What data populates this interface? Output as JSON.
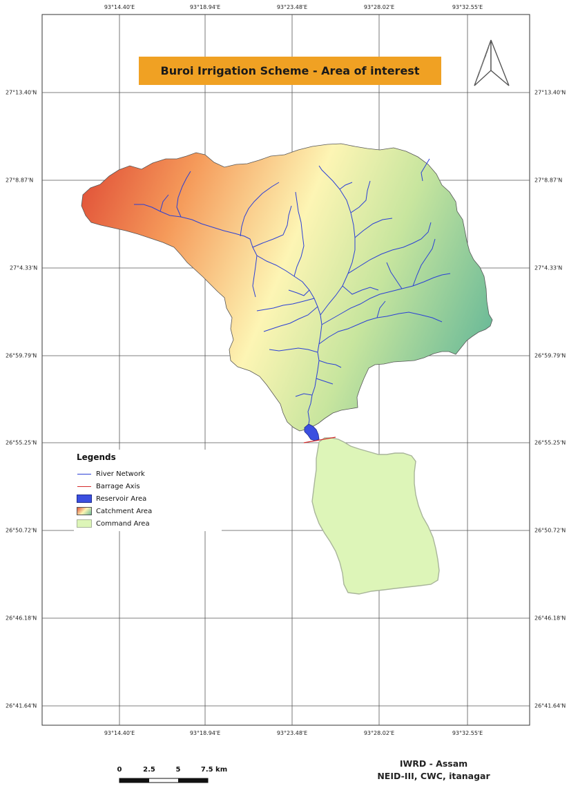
{
  "title": "Buroi Irrigation Scheme - Area of interest",
  "longitude_labels": [
    "93°14.40'E",
    "93°18.94'E",
    "93°23.48'E",
    "93°28.02'E",
    "93°32.55'E"
  ],
  "latitude_labels": [
    "27°13.40'N",
    "27°8.87'N",
    "27°4.33'N",
    "26°59.79'N",
    "26°55.25'N",
    "26°50.72'N",
    "26°46.18'N",
    "26°41.64'N"
  ],
  "legend": {
    "title": "Legends",
    "items": [
      {
        "label": "River Network",
        "symbol": "line",
        "color": "#2a3fd6"
      },
      {
        "label": "Barrage Axis",
        "symbol": "line",
        "color": "#d42a2a"
      },
      {
        "label": "Reservoir Area",
        "symbol": "fill",
        "color": "#3b4fe0"
      },
      {
        "label": "Catchment Area",
        "symbol": "gradient",
        "color": "#e8603a"
      },
      {
        "label": "Command Area",
        "symbol": "fill",
        "color": "#ddf5b8"
      }
    ]
  },
  "scale_bar": {
    "labels": [
      "0",
      "2.5",
      "5",
      "7.5 km"
    ]
  },
  "footer": {
    "line1": "IWRD - Assam",
    "line2": "NEID-III, CWC, itanagar"
  },
  "colors": {
    "catchment_west": "#e2553a",
    "catchment_mid": "#fdf5b4",
    "catchment_east": "#79c29a",
    "command_fill": "#ddf5b8",
    "command_edge": "#a8b49a",
    "river": "#2a3fd6",
    "barrage": "#d42a2a",
    "reservoir": "#3b4fe0",
    "title_bg": "#f0a123",
    "grid": "#555555"
  }
}
